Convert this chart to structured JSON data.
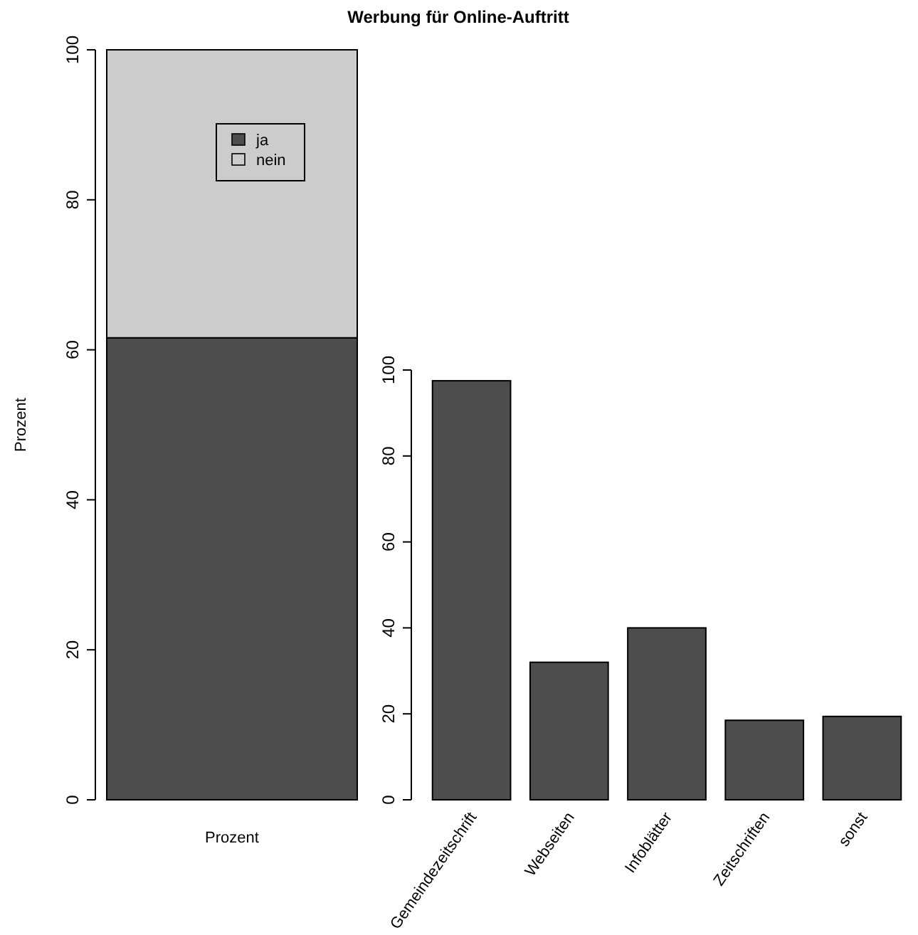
{
  "chart_data": [
    {
      "type": "bar",
      "title": "Werbung für Online-Auftritt",
      "ylabel": "Prozent",
      "categories": [
        "Prozent"
      ],
      "stacked": true,
      "series": [
        {
          "name": "ja",
          "color": "#4d4d4d",
          "values": [
            61.6
          ]
        },
        {
          "name": "nein",
          "color": "#cccccc",
          "values": [
            38.4
          ]
        }
      ],
      "ylim": [
        0,
        100
      ],
      "yticks": [
        0,
        20,
        40,
        60,
        80,
        100
      ],
      "legend": "top",
      "grid": false
    },
    {
      "type": "bar",
      "categories": [
        "Gemeindezeitschrift",
        "Webseiten",
        "Infoblätter",
        "Zeitschriften",
        "sonst"
      ],
      "values": [
        97.5,
        32,
        40,
        18.5,
        19.4
      ],
      "color": "#4d4d4d",
      "ylim": [
        0,
        100
      ],
      "yticks": [
        0,
        20,
        40,
        60,
        80,
        100
      ],
      "grid": false
    }
  ]
}
